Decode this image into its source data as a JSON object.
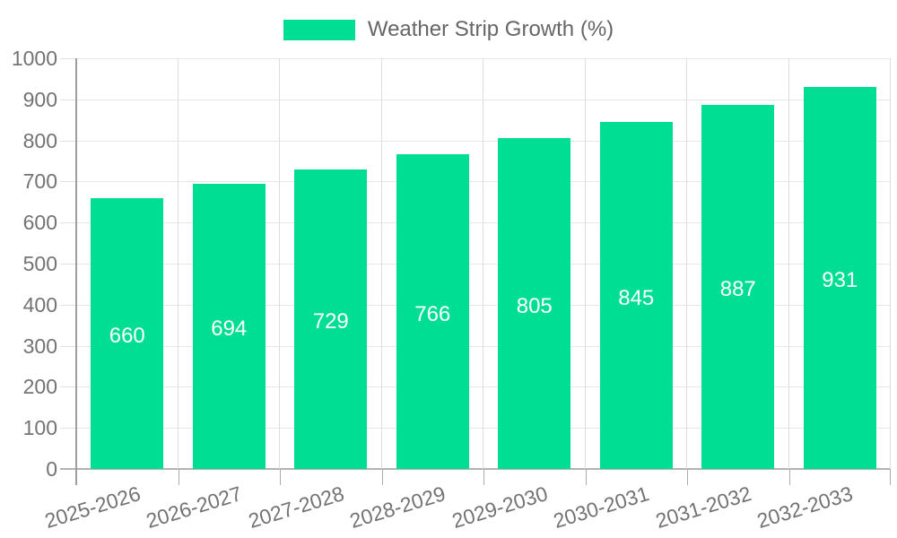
{
  "colors": {
    "bar": "#00DE94",
    "horizontal_grid": "#E6E6E6",
    "vertical_grid": "#DDDDDD",
    "axis_line": "#9E9E9E",
    "baseline": "#B3B3B3",
    "y_tick_mark": "#E0E0E0",
    "x_tick_mark": "#ABABAB",
    "tick_text": "#737373",
    "legend_text": "#666666",
    "value_text": "#FFFFFF",
    "background": "#FFFFFF"
  },
  "chart_data": {
    "type": "bar",
    "series_name": "Weather Strip Growth (%)",
    "categories": [
      "2025-2026",
      "2026-2027",
      "2027-2028",
      "2028-2029",
      "2029-2030",
      "2030-2031",
      "2031-2032",
      "2032-2033"
    ],
    "values": [
      660,
      694,
      729,
      766,
      805,
      845,
      887,
      931
    ],
    "value_labels": "inside-center-white",
    "title": "",
    "xlabel": "",
    "ylabel": "",
    "ylim": [
      0,
      1000
    ],
    "yticks": [
      0,
      100,
      200,
      300,
      400,
      500,
      600,
      700,
      800,
      900,
      1000
    ],
    "grid": "horizontal-and-vertical",
    "legend_position": "top-center",
    "x_label_rotation_deg": -17
  }
}
